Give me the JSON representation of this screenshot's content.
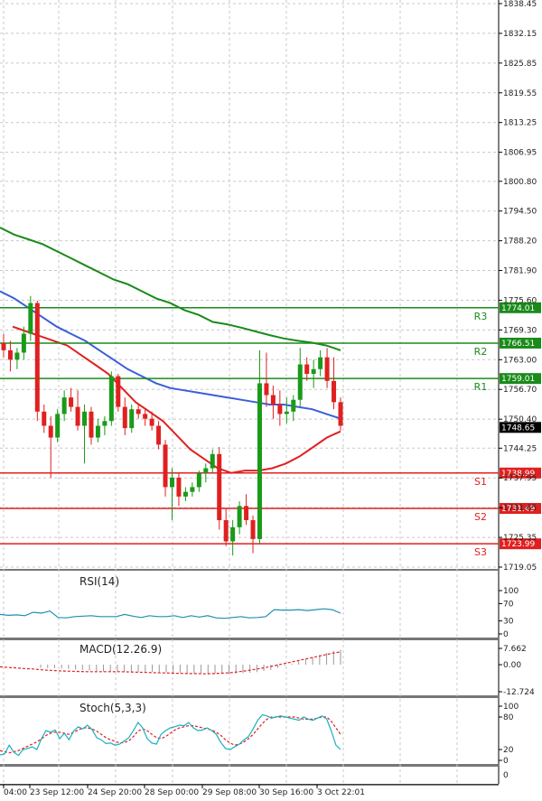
{
  "colors": {
    "bull": "#1a9a1a",
    "bear": "#e02020",
    "ma_slow": "#1a8a1a",
    "ma_mid": "#3a5fd9",
    "ma_fast": "#e02020",
    "resistance": "#1a8a1a",
    "support": "#e02020",
    "rsi": "#1e90b0",
    "stoch_main": "#1ab0c0",
    "stoch_signal": "#e02020",
    "macd_hist": "#999999",
    "macd_signal": "#e02020",
    "grid": "#c8c8c8"
  },
  "price_axis": {
    "ticks": [
      "1838.45",
      "1832.15",
      "1825.85",
      "1819.55",
      "1813.25",
      "1806.95",
      "1800.80",
      "1794.50",
      "1788.20",
      "1781.90",
      "1775.60",
      "1769.30",
      "1763.00",
      "1756.70",
      "1750.40",
      "1744.25",
      "1737.95",
      "1731.65",
      "1725.35",
      "1719.05"
    ],
    "current_price": "1748.65"
  },
  "levels": [
    {
      "name": "R3",
      "value": "1774.01",
      "kind": "resistance"
    },
    {
      "name": "R2",
      "value": "1766.51",
      "kind": "resistance"
    },
    {
      "name": "R1",
      "value": "1759.01",
      "kind": "resistance"
    },
    {
      "name": "S1",
      "value": "1738.99",
      "kind": "support"
    },
    {
      "name": "S2",
      "value": "1731.49",
      "kind": "support"
    },
    {
      "name": "S3",
      "value": "1723.99",
      "kind": "support"
    }
  ],
  "x_axis": {
    "labels": [
      "04:00",
      "23 Sep 12:00",
      "24 Sep 20:00",
      "28 Sep 00:00",
      "29 Sep 08:00",
      "30 Sep 16:00",
      "3 Oct 22:01"
    ]
  },
  "indicators": {
    "rsi": {
      "title": "RSI(14)",
      "ticks": [
        "100",
        "70",
        "30",
        "0"
      ]
    },
    "macd": {
      "title": "MACD(12.26.9)",
      "ticks": [
        "7.662",
        "0.00",
        "-12.724"
      ]
    },
    "stoch": {
      "title": "Stoch(5,3,3)",
      "ticks": [
        "100",
        "80",
        "20",
        "0"
      ]
    }
  },
  "chart_data": {
    "type": "candlestick",
    "title": "",
    "candles": [
      {
        "o": 1766.5,
        "h": 1768.5,
        "l": 1763.5,
        "c": 1765.0
      },
      {
        "o": 1765.0,
        "h": 1767.0,
        "l": 1760.5,
        "c": 1763.0
      },
      {
        "o": 1763.0,
        "h": 1765.5,
        "l": 1761.0,
        "c": 1764.5
      },
      {
        "o": 1764.5,
        "h": 1770.0,
        "l": 1763.0,
        "c": 1768.5
      },
      {
        "o": 1768.5,
        "h": 1776.5,
        "l": 1767.0,
        "c": 1775.0
      },
      {
        "o": 1775.0,
        "h": 1775.5,
        "l": 1750.0,
        "c": 1752.0
      },
      {
        "o": 1752.0,
        "h": 1753.5,
        "l": 1747.5,
        "c": 1749.0
      },
      {
        "o": 1749.0,
        "h": 1751.0,
        "l": 1738.0,
        "c": 1746.5
      },
      {
        "o": 1746.5,
        "h": 1752.5,
        "l": 1745.5,
        "c": 1751.5
      },
      {
        "o": 1751.5,
        "h": 1756.5,
        "l": 1750.0,
        "c": 1755.0
      },
      {
        "o": 1755.0,
        "h": 1757.0,
        "l": 1752.0,
        "c": 1753.0
      },
      {
        "o": 1753.0,
        "h": 1756.5,
        "l": 1748.0,
        "c": 1749.0
      },
      {
        "o": 1749.0,
        "h": 1753.5,
        "l": 1741.0,
        "c": 1752.0
      },
      {
        "o": 1752.0,
        "h": 1753.0,
        "l": 1745.0,
        "c": 1746.5
      },
      {
        "o": 1746.5,
        "h": 1750.5,
        "l": 1745.5,
        "c": 1749.0
      },
      {
        "o": 1749.0,
        "h": 1751.0,
        "l": 1747.0,
        "c": 1750.0
      },
      {
        "o": 1750.0,
        "h": 1760.5,
        "l": 1749.0,
        "c": 1759.5
      },
      {
        "o": 1759.5,
        "h": 1760.0,
        "l": 1752.0,
        "c": 1753.0
      },
      {
        "o": 1753.0,
        "h": 1755.0,
        "l": 1747.0,
        "c": 1748.5
      },
      {
        "o": 1748.5,
        "h": 1753.5,
        "l": 1747.5,
        "c": 1752.5
      },
      {
        "o": 1752.5,
        "h": 1753.5,
        "l": 1750.5,
        "c": 1751.5
      },
      {
        "o": 1751.5,
        "h": 1752.5,
        "l": 1749.0,
        "c": 1750.5
      },
      {
        "o": 1750.5,
        "h": 1752.0,
        "l": 1748.0,
        "c": 1749.0
      },
      {
        "o": 1749.0,
        "h": 1750.0,
        "l": 1744.0,
        "c": 1745.0
      },
      {
        "o": 1745.0,
        "h": 1746.0,
        "l": 1734.0,
        "c": 1736.0
      },
      {
        "o": 1736.0,
        "h": 1740.0,
        "l": 1729.0,
        "c": 1738.0
      },
      {
        "o": 1738.0,
        "h": 1739.0,
        "l": 1732.0,
        "c": 1734.0
      },
      {
        "o": 1734.0,
        "h": 1736.0,
        "l": 1733.0,
        "c": 1735.0
      },
      {
        "o": 1735.0,
        "h": 1737.0,
        "l": 1734.0,
        "c": 1736.0
      },
      {
        "o": 1736.0,
        "h": 1739.5,
        "l": 1735.0,
        "c": 1739.0
      },
      {
        "o": 1739.0,
        "h": 1741.0,
        "l": 1737.0,
        "c": 1740.0
      },
      {
        "o": 1740.0,
        "h": 1744.0,
        "l": 1739.0,
        "c": 1743.0
      },
      {
        "o": 1743.0,
        "h": 1744.5,
        "l": 1727.0,
        "c": 1729.0
      },
      {
        "o": 1729.0,
        "h": 1731.5,
        "l": 1723.5,
        "c": 1724.5
      },
      {
        "o": 1724.5,
        "h": 1729.0,
        "l": 1721.5,
        "c": 1727.5
      },
      {
        "o": 1727.5,
        "h": 1733.0,
        "l": 1726.0,
        "c": 1732.0
      },
      {
        "o": 1732.0,
        "h": 1734.5,
        "l": 1728.0,
        "c": 1729.0
      },
      {
        "o": 1729.0,
        "h": 1730.0,
        "l": 1722.0,
        "c": 1725.0
      },
      {
        "o": 1725.0,
        "h": 1765.0,
        "l": 1724.0,
        "c": 1758.0
      },
      {
        "o": 1758.0,
        "h": 1764.5,
        "l": 1753.0,
        "c": 1755.5
      },
      {
        "o": 1755.5,
        "h": 1757.5,
        "l": 1750.5,
        "c": 1753.5
      },
      {
        "o": 1753.5,
        "h": 1756.5,
        "l": 1749.0,
        "c": 1751.5
      },
      {
        "o": 1751.5,
        "h": 1755.0,
        "l": 1749.5,
        "c": 1752.0
      },
      {
        "o": 1752.0,
        "h": 1755.5,
        "l": 1750.0,
        "c": 1754.5
      },
      {
        "o": 1754.5,
        "h": 1765.5,
        "l": 1753.0,
        "c": 1762.0
      },
      {
        "o": 1762.0,
        "h": 1763.5,
        "l": 1758.5,
        "c": 1760.0
      },
      {
        "o": 1760.0,
        "h": 1763.0,
        "l": 1757.0,
        "c": 1761.0
      },
      {
        "o": 1761.0,
        "h": 1765.0,
        "l": 1759.5,
        "c": 1763.5
      },
      {
        "o": 1763.5,
        "h": 1765.5,
        "l": 1757.0,
        "c": 1758.5
      },
      {
        "o": 1758.5,
        "h": 1763.5,
        "l": 1752.5,
        "c": 1754.0
      },
      {
        "o": 1754.0,
        "h": 1755.0,
        "l": 1748.0,
        "c": 1749.0
      }
    ],
    "ma_slow": [
      1791.0,
      1789.5,
      1788.5,
      1787.5,
      1786.0,
      1784.5,
      1783.0,
      1781.5,
      1780.0,
      1779.0,
      1777.5,
      1776.0,
      1775.0,
      1773.5,
      1772.5,
      1771.0,
      1770.5,
      1769.8,
      1769.0,
      1768.2,
      1767.5,
      1767.0,
      1766.6,
      1766.0,
      1765.0
    ],
    "ma_mid": [
      1777.5,
      1776.0,
      1774.0,
      1772.0,
      1770.0,
      1768.5,
      1767.0,
      1765.0,
      1763.0,
      1761.0,
      1759.5,
      1758.0,
      1757.0,
      1756.5,
      1756.0,
      1755.5,
      1755.0,
      1754.5,
      1754.0,
      1753.5,
      1753.5,
      1753.0,
      1752.5,
      1751.5,
      1750.5
    ],
    "ma_fast": [
      1770.0,
      1769.0,
      1768.0,
      1767.0,
      1766.0,
      1764.0,
      1762.0,
      1760.0,
      1757.0,
      1754.0,
      1752.0,
      1750.0,
      1747.0,
      1744.0,
      1742.0,
      1740.0,
      1739.0,
      1739.5,
      1739.5,
      1740.0,
      1741.0,
      1742.5,
      1744.5,
      1746.5,
      1747.8
    ],
    "rsi": [
      45,
      43,
      44,
      42,
      50,
      48,
      53,
      38,
      37,
      40,
      41,
      42,
      40,
      40,
      40,
      45,
      41,
      38,
      42,
      40,
      40,
      42,
      38,
      42,
      39,
      42,
      37,
      36,
      38,
      40,
      37,
      38,
      40,
      56,
      55,
      55,
      56,
      54,
      56,
      58,
      56,
      48
    ],
    "macd_hist": [
      -1.5,
      -1.6,
      -1.7,
      -1.8,
      -2.0,
      -2.3,
      -2.5,
      -2.8,
      -3.0,
      -3.2,
      -3.3,
      -3.3,
      -3.3,
      -3.2,
      -3.3,
      -3.4,
      -3.4,
      -3.5,
      -3.6,
      -3.7,
      -3.8,
      -3.9,
      -4.0,
      -4.0,
      -4.1,
      -4.2,
      -4.3,
      -4.4,
      -4.2,
      -4.0,
      -3.8,
      -3.5,
      -3.0,
      -2.5,
      -1.5,
      -0.5,
      0.5,
      1.5,
      2.5,
      3.5,
      4.5,
      5.5,
      6.5,
      7.0
    ],
    "macd_signal": [
      -1.0,
      -1.3,
      -1.5,
      -1.8,
      -2.0,
      -2.3,
      -2.6,
      -2.8,
      -3.0,
      -3.1,
      -3.2,
      -3.3,
      -3.3,
      -3.3,
      -3.3,
      -3.3,
      -3.4,
      -3.5,
      -3.6,
      -3.7,
      -3.8,
      -3.9,
      -4.0,
      -4.1,
      -4.2,
      -4.2,
      -4.3,
      -4.2,
      -4.0,
      -3.8,
      -3.4,
      -2.9,
      -2.3,
      -1.7,
      -1.0,
      -0.2,
      0.6,
      1.4,
      2.2,
      3.0,
      3.8,
      4.6,
      5.4,
      6.0
    ],
    "stoch_main": [
      10,
      12,
      28,
      15,
      9,
      20,
      22,
      25,
      20,
      40,
      55,
      52,
      56,
      40,
      50,
      38,
      54,
      62,
      58,
      65,
      57,
      42,
      38,
      31,
      32,
      28,
      30,
      36,
      42,
      55,
      70,
      60,
      40,
      32,
      30,
      48,
      55,
      60,
      62,
      65,
      64,
      70,
      60,
      55,
      56,
      60,
      55,
      48,
      33,
      22,
      20,
      25,
      30,
      38,
      44,
      58,
      74,
      84,
      82,
      78,
      80,
      82,
      80,
      78,
      76,
      74,
      80,
      76,
      74,
      78,
      82,
      76,
      54,
      28,
      20
    ],
    "stoch_signal": [
      18,
      16,
      14,
      16,
      18,
      22,
      26,
      30,
      34,
      40,
      46,
      50,
      52,
      52,
      50,
      48,
      52,
      56,
      60,
      60,
      58,
      54,
      48,
      42,
      38,
      35,
      32,
      33,
      36,
      44,
      54,
      58,
      55,
      48,
      42,
      40,
      44,
      50,
      56,
      60,
      62,
      64,
      64,
      62,
      60,
      58,
      56,
      52,
      46,
      38,
      32,
      28,
      30,
      34,
      40,
      48,
      58,
      68,
      76,
      80,
      80,
      80,
      80,
      80,
      80,
      78,
      76,
      76,
      76,
      78,
      80,
      80,
      72,
      60,
      48
    ]
  }
}
